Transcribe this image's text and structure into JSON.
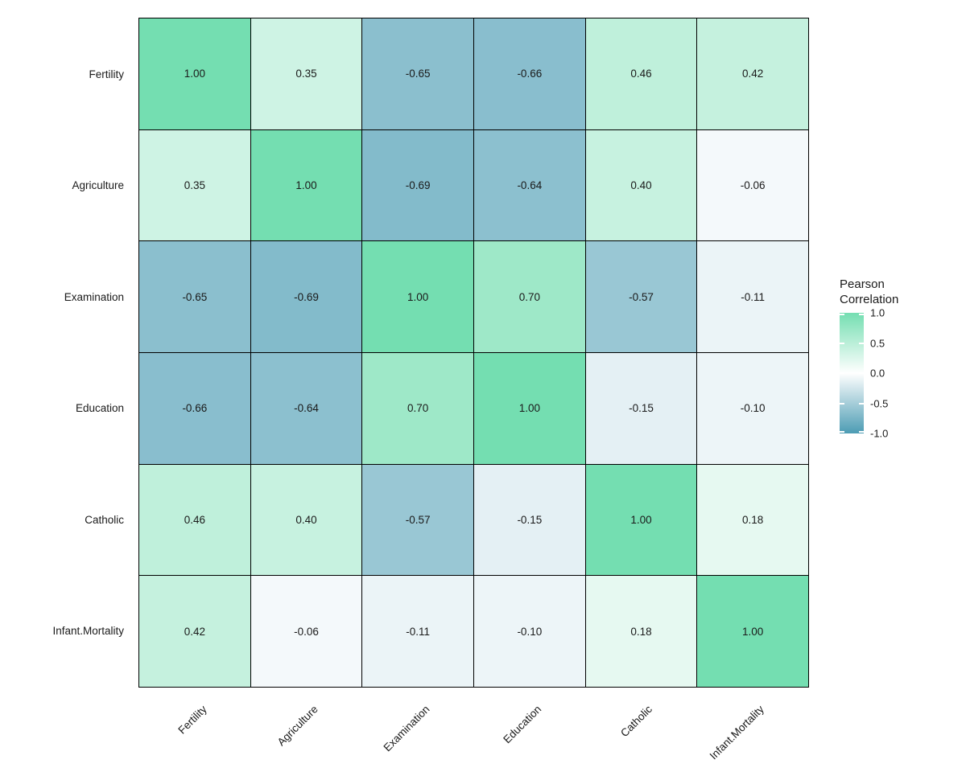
{
  "page": {
    "background": "#ffffff"
  },
  "chart_data": {
    "type": "heatmap",
    "categories": [
      "Fertility",
      "Agriculture",
      "Examination",
      "Education",
      "Catholic",
      "Infant.Mortality"
    ],
    "matrix": [
      [
        1.0,
        0.35,
        -0.65,
        -0.66,
        0.46,
        0.42
      ],
      [
        0.35,
        1.0,
        -0.69,
        -0.64,
        0.4,
        -0.06
      ],
      [
        -0.65,
        -0.69,
        1.0,
        0.7,
        -0.57,
        -0.11
      ],
      [
        -0.66,
        -0.64,
        0.7,
        1.0,
        -0.15,
        -0.1
      ],
      [
        0.46,
        0.4,
        -0.57,
        -0.15,
        1.0,
        0.18
      ],
      [
        0.42,
        -0.06,
        -0.11,
        -0.1,
        0.18,
        1.0
      ]
    ],
    "value_domain": [
      -1.0,
      1.0
    ],
    "cell_label_decimals": 2,
    "grid": "off",
    "legend": {
      "position": "right",
      "title_lines": [
        "Pearson",
        "Correlation"
      ],
      "ticks": [
        {
          "label": "1.0",
          "value": 1.0
        },
        {
          "label": "0.5",
          "value": 0.5
        },
        {
          "label": "0.0",
          "value": 0.0
        },
        {
          "label": "-0.5",
          "value": -0.5
        },
        {
          "label": "-1.0",
          "value": -1.0
        }
      ]
    },
    "colors": {
      "high": "#74DEB1",
      "mid": "#FFFFFF",
      "low": "#4C9CB4",
      "cell_border": "#000000",
      "text": "#1A1A1A"
    }
  }
}
